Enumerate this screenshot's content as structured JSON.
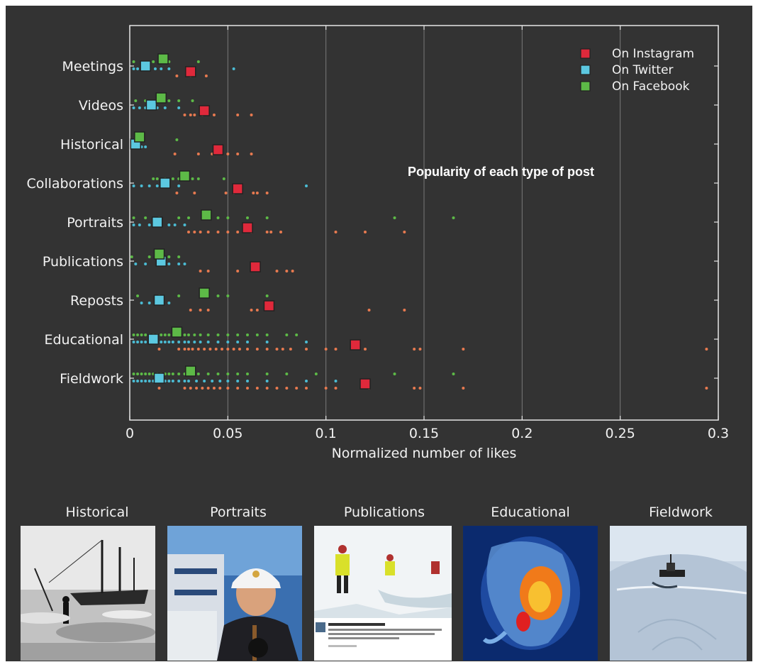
{
  "chart_data": {
    "type": "scatter",
    "title": "Popularity of each type of post",
    "xlabel": "Normalized number of likes",
    "ylabel": "",
    "xlim": [
      0,
      0.3
    ],
    "xticks": [
      0,
      0.05,
      0.1,
      0.15,
      0.2,
      0.25,
      0.3
    ],
    "xtick_labels": [
      "0",
      "0.05",
      "0.1",
      "0.15",
      "0.2",
      "0.25",
      "0.3"
    ],
    "grid": "vertical",
    "legend_position": "top-right",
    "categories": [
      "Meetings",
      "Videos",
      "Historical",
      "Collaborations",
      "Portraits",
      "Publications",
      "Reposts",
      "Educational",
      "Fieldwork"
    ],
    "series": [
      {
        "name": "On Instagram",
        "color": "#e0293b",
        "dot_color": "#e87a50",
        "means": [
          0.031,
          0.038,
          0.045,
          0.055,
          0.06,
          0.064,
          0.071,
          0.115,
          0.12
        ],
        "points": [
          [
            0.024,
            0.031,
            0.039
          ],
          [
            0.028,
            0.031,
            0.033,
            0.037,
            0.043,
            0.055,
            0.062
          ],
          [
            0.023,
            0.035,
            0.042,
            0.05,
            0.055,
            0.062
          ],
          [
            0.024,
            0.033,
            0.049,
            0.053,
            0.063,
            0.065,
            0.07
          ],
          [
            0.03,
            0.033,
            0.036,
            0.04,
            0.045,
            0.05,
            0.055,
            0.062,
            0.07,
            0.072,
            0.077,
            0.105,
            0.12,
            0.14
          ],
          [
            0.036,
            0.04,
            0.055,
            0.075,
            0.08,
            0.083
          ],
          [
            0.031,
            0.036,
            0.04,
            0.062,
            0.065,
            0.122,
            0.14
          ],
          [
            0.015,
            0.025,
            0.028,
            0.03,
            0.032,
            0.035,
            0.038,
            0.041,
            0.044,
            0.047,
            0.05,
            0.053,
            0.056,
            0.06,
            0.065,
            0.07,
            0.075,
            0.078,
            0.082,
            0.09,
            0.1,
            0.105,
            0.12,
            0.145,
            0.148,
            0.17,
            0.294
          ],
          [
            0.015,
            0.028,
            0.031,
            0.034,
            0.037,
            0.04,
            0.043,
            0.046,
            0.05,
            0.055,
            0.06,
            0.065,
            0.07,
            0.075,
            0.08,
            0.085,
            0.09,
            0.1,
            0.105,
            0.122,
            0.145,
            0.148,
            0.17,
            0.294
          ]
        ]
      },
      {
        "name": "On Twitter",
        "color": "#5cc8e0",
        "dot_color": "#4bbcd4",
        "means": [
          0.008,
          0.011,
          0.003,
          0.018,
          0.014,
          0.016,
          0.015,
          0.012,
          0.015
        ],
        "points": [
          [
            0.002,
            0.004,
            0.006,
            0.01,
            0.013,
            0.016,
            0.02,
            0.053
          ],
          [
            0.002,
            0.005,
            0.008,
            0.014,
            0.018,
            0.025
          ],
          [
            0.001,
            0.003,
            0.006,
            0.008
          ],
          [
            0.002,
            0.006,
            0.01,
            0.014,
            0.02,
            0.025,
            0.09
          ],
          [
            0.002,
            0.005,
            0.01,
            0.015,
            0.02,
            0.023,
            0.028
          ],
          [
            0.003,
            0.008,
            0.014,
            0.02,
            0.025,
            0.028
          ],
          [
            0.006,
            0.01,
            0.014,
            0.02
          ],
          [
            0.002,
            0.004,
            0.006,
            0.008,
            0.01,
            0.012,
            0.014,
            0.016,
            0.018,
            0.02,
            0.022,
            0.025,
            0.028,
            0.03,
            0.033,
            0.036,
            0.04,
            0.045,
            0.05,
            0.055,
            0.06,
            0.07,
            0.09
          ],
          [
            0.002,
            0.004,
            0.006,
            0.008,
            0.01,
            0.012,
            0.014,
            0.016,
            0.018,
            0.02,
            0.022,
            0.025,
            0.028,
            0.03,
            0.034,
            0.038,
            0.042,
            0.046,
            0.05,
            0.055,
            0.06,
            0.07,
            0.09,
            0.105
          ]
        ]
      },
      {
        "name": "On Facebook",
        "color": "#5dba47",
        "dot_color": "#5dba47",
        "means": [
          0.017,
          0.016,
          0.005,
          0.028,
          0.039,
          0.015,
          0.038,
          0.024,
          0.031
        ],
        "points": [
          [
            0.002,
            0.012,
            0.018,
            0.02,
            0.035
          ],
          [
            0.003,
            0.008,
            0.02,
            0.025,
            0.032
          ],
          [
            0.003,
            0.024
          ],
          [
            0.012,
            0.014,
            0.018,
            0.022,
            0.025,
            0.03,
            0.032,
            0.035,
            0.048
          ],
          [
            0.002,
            0.008,
            0.015,
            0.025,
            0.03,
            0.045,
            0.05,
            0.06,
            0.07,
            0.135,
            0.165
          ],
          [
            0.001,
            0.01,
            0.02,
            0.025
          ],
          [
            0.004,
            0.015,
            0.025,
            0.045,
            0.05,
            0.07
          ],
          [
            0.002,
            0.004,
            0.006,
            0.008,
            0.01,
            0.012,
            0.014,
            0.016,
            0.018,
            0.02,
            0.022,
            0.025,
            0.028,
            0.03,
            0.033,
            0.036,
            0.04,
            0.045,
            0.05,
            0.055,
            0.06,
            0.065,
            0.07,
            0.08,
            0.085
          ],
          [
            0.002,
            0.004,
            0.006,
            0.008,
            0.01,
            0.012,
            0.014,
            0.016,
            0.018,
            0.02,
            0.022,
            0.025,
            0.028,
            0.03,
            0.035,
            0.04,
            0.045,
            0.05,
            0.055,
            0.06,
            0.07,
            0.08,
            0.095,
            0.135,
            0.165
          ]
        ]
      }
    ]
  },
  "thumbnails": [
    {
      "label": "Historical",
      "icon": "historical-ship-photo"
    },
    {
      "label": "Portraits",
      "icon": "portrait-photo"
    },
    {
      "label": "Publications",
      "icon": "publications-tweet-photo"
    },
    {
      "label": "Educational",
      "icon": "educational-sea-angel-photo"
    },
    {
      "label": "Fieldwork",
      "icon": "fieldwork-ship-in-ice-photo"
    }
  ],
  "colors": {
    "background": "#333333",
    "axis": "#e6e6e6",
    "text": "#f2f2f2",
    "grid": "#7a7a7a"
  }
}
